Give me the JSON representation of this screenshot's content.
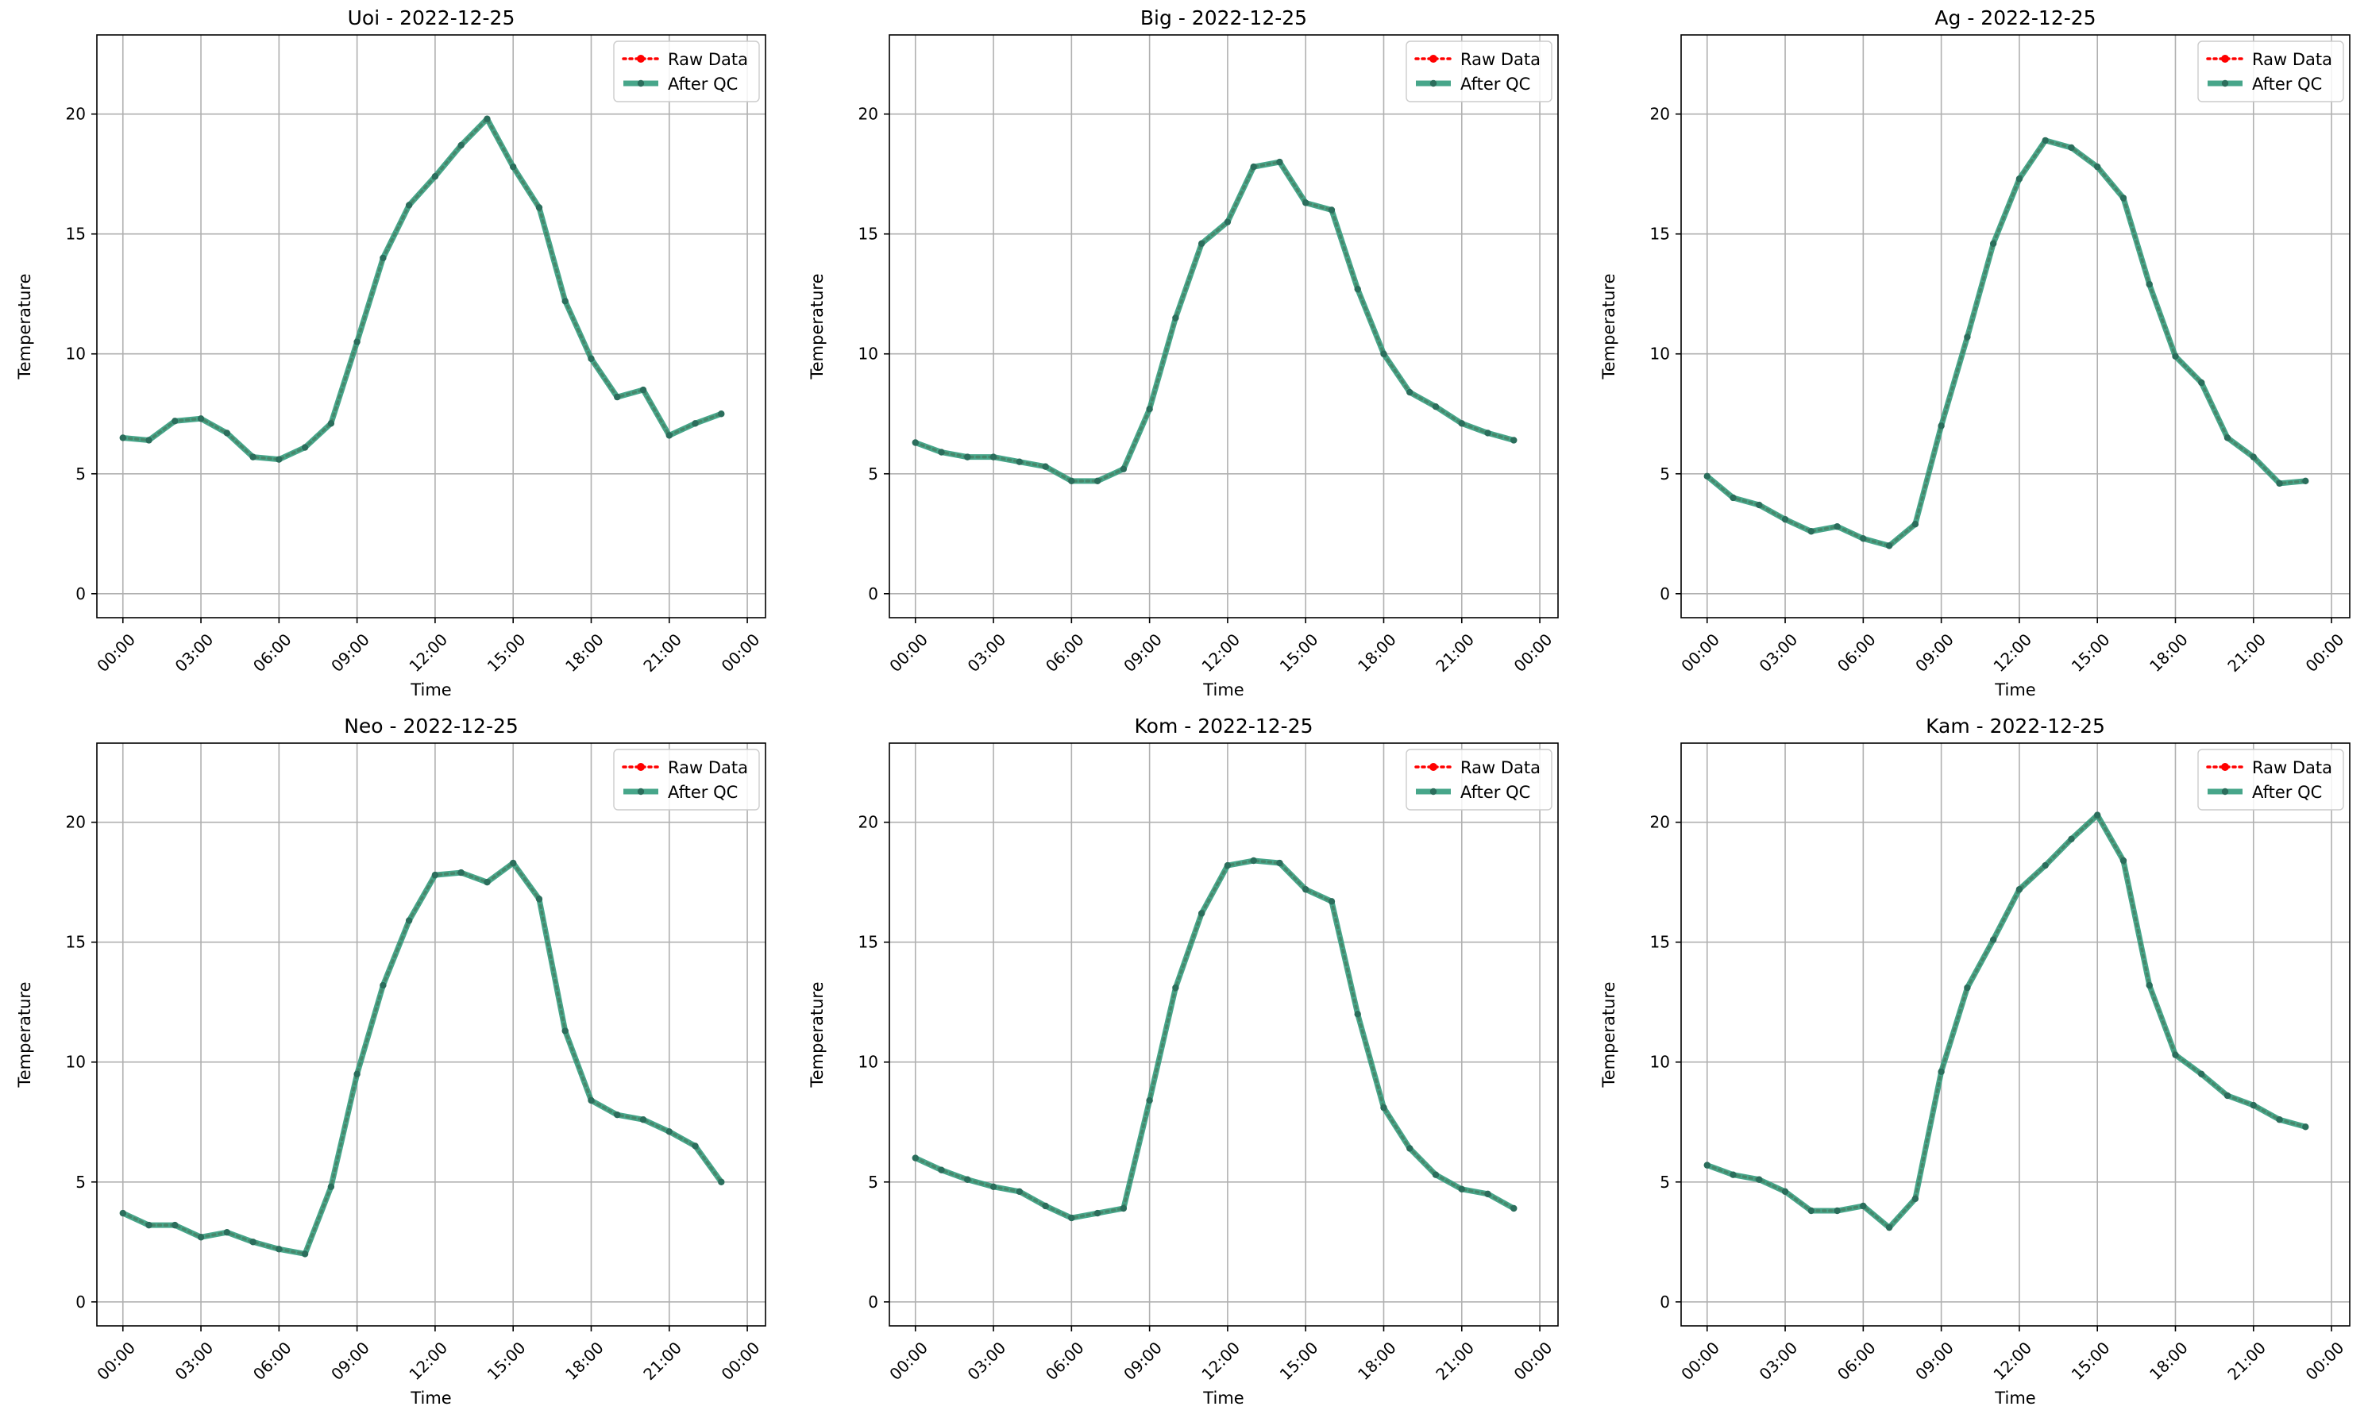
{
  "chart_data": [
    {
      "type": "line",
      "title": "Uoi - 2022-12-25",
      "xlabel": "Time",
      "ylabel": "Temperature",
      "x": [
        "00:00",
        "01:00",
        "02:00",
        "03:00",
        "04:00",
        "05:00",
        "06:00",
        "07:00",
        "08:00",
        "09:00",
        "10:00",
        "11:00",
        "12:00",
        "13:00",
        "14:00",
        "15:00",
        "16:00",
        "17:00",
        "18:00",
        "19:00",
        "20:00",
        "21:00",
        "22:00",
        "23:00"
      ],
      "series": [
        {
          "name": "Raw Data",
          "values": [
            6.5,
            6.4,
            7.2,
            7.3,
            6.7,
            5.7,
            5.6,
            6.1,
            7.1,
            10.5,
            14.0,
            16.2,
            17.4,
            18.7,
            19.8,
            17.8,
            16.1,
            12.2,
            9.8,
            8.2,
            8.5,
            6.6,
            7.1,
            7.5
          ]
        },
        {
          "name": "After QC",
          "values": [
            6.5,
            6.4,
            7.2,
            7.3,
            6.7,
            5.7,
            5.6,
            6.1,
            7.1,
            10.5,
            14.0,
            16.2,
            17.4,
            18.7,
            19.8,
            17.8,
            16.1,
            12.2,
            9.8,
            8.2,
            8.5,
            6.6,
            7.1,
            7.5
          ]
        }
      ],
      "xticks": [
        "00:00",
        "03:00",
        "06:00",
        "09:00",
        "12:00",
        "15:00",
        "18:00",
        "21:00",
        "00:00"
      ],
      "yticks": [
        0,
        5,
        10,
        15,
        20
      ],
      "ylim": [
        -1,
        23.3
      ],
      "grid": true,
      "legend": "top-right"
    },
    {
      "type": "line",
      "title": "Big - 2022-12-25",
      "xlabel": "Time",
      "ylabel": "Temperature",
      "x": [
        "00:00",
        "01:00",
        "02:00",
        "03:00",
        "04:00",
        "05:00",
        "06:00",
        "07:00",
        "08:00",
        "09:00",
        "10:00",
        "11:00",
        "12:00",
        "13:00",
        "14:00",
        "15:00",
        "16:00",
        "17:00",
        "18:00",
        "19:00",
        "20:00",
        "21:00",
        "22:00",
        "23:00"
      ],
      "series": [
        {
          "name": "Raw Data",
          "values": [
            6.3,
            5.9,
            5.7,
            5.7,
            5.5,
            5.3,
            4.7,
            4.7,
            5.2,
            7.7,
            11.5,
            14.6,
            15.5,
            17.8,
            18.0,
            16.3,
            16.0,
            12.7,
            10.0,
            8.4,
            7.8,
            7.1,
            6.7,
            6.4
          ]
        },
        {
          "name": "After QC",
          "values": [
            6.3,
            5.9,
            5.7,
            5.7,
            5.5,
            5.3,
            4.7,
            4.7,
            5.2,
            7.7,
            11.5,
            14.6,
            15.5,
            17.8,
            18.0,
            16.3,
            16.0,
            12.7,
            10.0,
            8.4,
            7.8,
            7.1,
            6.7,
            6.4
          ]
        }
      ],
      "xticks": [
        "00:00",
        "03:00",
        "06:00",
        "09:00",
        "12:00",
        "15:00",
        "18:00",
        "21:00",
        "00:00"
      ],
      "yticks": [
        0,
        5,
        10,
        15,
        20
      ],
      "ylim": [
        -1,
        23.3
      ],
      "grid": true,
      "legend": "top-right"
    },
    {
      "type": "line",
      "title": "Ag - 2022-12-25",
      "xlabel": "Time",
      "ylabel": "Temperature",
      "x": [
        "00:00",
        "01:00",
        "02:00",
        "03:00",
        "04:00",
        "05:00",
        "06:00",
        "07:00",
        "08:00",
        "09:00",
        "10:00",
        "11:00",
        "12:00",
        "13:00",
        "14:00",
        "15:00",
        "16:00",
        "17:00",
        "18:00",
        "19:00",
        "20:00",
        "21:00",
        "22:00",
        "23:00"
      ],
      "series": [
        {
          "name": "Raw Data",
          "values": [
            4.9,
            4.0,
            3.7,
            3.1,
            2.6,
            2.8,
            2.3,
            2.0,
            2.9,
            7.0,
            10.7,
            14.6,
            17.3,
            18.9,
            18.6,
            17.8,
            16.5,
            12.9,
            9.9,
            8.8,
            6.5,
            5.7,
            4.6,
            4.7
          ]
        },
        {
          "name": "After QC",
          "values": [
            4.9,
            4.0,
            3.7,
            3.1,
            2.6,
            2.8,
            2.3,
            2.0,
            2.9,
            7.0,
            10.7,
            14.6,
            17.3,
            18.9,
            18.6,
            17.8,
            16.5,
            12.9,
            9.9,
            8.8,
            6.5,
            5.7,
            4.6,
            4.7
          ]
        }
      ],
      "xticks": [
        "00:00",
        "03:00",
        "06:00",
        "09:00",
        "12:00",
        "15:00",
        "18:00",
        "21:00",
        "00:00"
      ],
      "yticks": [
        0,
        5,
        10,
        15,
        20
      ],
      "ylim": [
        -1,
        23.3
      ],
      "grid": true,
      "legend": "top-right"
    },
    {
      "type": "line",
      "title": "Neo - 2022-12-25",
      "xlabel": "Time",
      "ylabel": "Temperature",
      "x": [
        "00:00",
        "01:00",
        "02:00",
        "03:00",
        "04:00",
        "05:00",
        "06:00",
        "07:00",
        "08:00",
        "09:00",
        "10:00",
        "11:00",
        "12:00",
        "13:00",
        "14:00",
        "15:00",
        "16:00",
        "17:00",
        "18:00",
        "19:00",
        "20:00",
        "21:00",
        "22:00",
        "23:00"
      ],
      "series": [
        {
          "name": "Raw Data",
          "values": [
            3.7,
            3.2,
            3.2,
            2.7,
            2.9,
            2.5,
            2.2,
            2.0,
            4.8,
            9.5,
            13.2,
            15.9,
            17.8,
            17.9,
            17.5,
            18.3,
            16.8,
            11.3,
            8.4,
            7.8,
            7.6,
            7.1,
            6.5,
            5.0
          ]
        },
        {
          "name": "After QC",
          "values": [
            3.7,
            3.2,
            3.2,
            2.7,
            2.9,
            2.5,
            2.2,
            2.0,
            4.8,
            9.5,
            13.2,
            15.9,
            17.8,
            17.9,
            17.5,
            18.3,
            16.8,
            11.3,
            8.4,
            7.8,
            7.6,
            7.1,
            6.5,
            5.0
          ]
        }
      ],
      "xticks": [
        "00:00",
        "03:00",
        "06:00",
        "09:00",
        "12:00",
        "15:00",
        "18:00",
        "21:00",
        "00:00"
      ],
      "yticks": [
        0,
        5,
        10,
        15,
        20
      ],
      "ylim": [
        -1,
        23.3
      ],
      "grid": true,
      "legend": "top-right"
    },
    {
      "type": "line",
      "title": "Kom - 2022-12-25",
      "xlabel": "Time",
      "ylabel": "Temperature",
      "x": [
        "00:00",
        "01:00",
        "02:00",
        "03:00",
        "04:00",
        "05:00",
        "06:00",
        "07:00",
        "08:00",
        "09:00",
        "10:00",
        "11:00",
        "12:00",
        "13:00",
        "14:00",
        "15:00",
        "16:00",
        "17:00",
        "18:00",
        "19:00",
        "20:00",
        "21:00",
        "22:00",
        "23:00"
      ],
      "series": [
        {
          "name": "Raw Data",
          "values": [
            6.0,
            5.5,
            5.1,
            4.8,
            4.6,
            4.0,
            3.5,
            3.7,
            3.9,
            8.4,
            13.1,
            16.2,
            18.2,
            18.4,
            18.3,
            17.2,
            16.7,
            12.0,
            8.1,
            6.4,
            5.3,
            4.7,
            4.5,
            3.9
          ]
        },
        {
          "name": "After QC",
          "values": [
            6.0,
            5.5,
            5.1,
            4.8,
            4.6,
            4.0,
            3.5,
            3.7,
            3.9,
            8.4,
            13.1,
            16.2,
            18.2,
            18.4,
            18.3,
            17.2,
            16.7,
            12.0,
            8.1,
            6.4,
            5.3,
            4.7,
            4.5,
            3.9
          ]
        }
      ],
      "xticks": [
        "00:00",
        "03:00",
        "06:00",
        "09:00",
        "12:00",
        "15:00",
        "18:00",
        "21:00",
        "00:00"
      ],
      "yticks": [
        0,
        5,
        10,
        15,
        20
      ],
      "ylim": [
        -1,
        23.3
      ],
      "grid": true,
      "legend": "top-right"
    },
    {
      "type": "line",
      "title": "Kam - 2022-12-25",
      "xlabel": "Time",
      "ylabel": "Temperature",
      "x": [
        "00:00",
        "01:00",
        "02:00",
        "03:00",
        "04:00",
        "05:00",
        "06:00",
        "07:00",
        "08:00",
        "09:00",
        "10:00",
        "11:00",
        "12:00",
        "13:00",
        "14:00",
        "15:00",
        "16:00",
        "17:00",
        "18:00",
        "19:00",
        "20:00",
        "21:00",
        "22:00",
        "23:00"
      ],
      "series": [
        {
          "name": "Raw Data",
          "values": [
            5.7,
            5.3,
            5.1,
            4.6,
            3.8,
            3.8,
            4.0,
            3.1,
            4.3,
            9.6,
            13.1,
            15.1,
            17.2,
            18.2,
            19.3,
            20.3,
            18.4,
            13.2,
            10.3,
            9.5,
            8.6,
            8.2,
            7.6,
            7.3
          ]
        },
        {
          "name": "After QC",
          "values": [
            5.7,
            5.3,
            5.1,
            4.6,
            3.8,
            3.8,
            4.0,
            3.1,
            4.3,
            9.6,
            13.1,
            15.1,
            17.2,
            18.2,
            19.3,
            20.3,
            18.4,
            13.2,
            10.3,
            9.5,
            8.6,
            8.2,
            7.6,
            7.3
          ]
        }
      ],
      "xticks": [
        "00:00",
        "03:00",
        "06:00",
        "09:00",
        "12:00",
        "15:00",
        "18:00",
        "21:00",
        "00:00"
      ],
      "yticks": [
        0,
        5,
        10,
        15,
        20
      ],
      "ylim": [
        -1,
        23.3
      ],
      "grid": true,
      "legend": "top-right"
    }
  ],
  "colors": {
    "raw": "#ff0000",
    "qc": "#2e9a7a",
    "qc_marker": "#2b6e5c",
    "grid": "#b0b0b0",
    "axis": "#000000"
  }
}
